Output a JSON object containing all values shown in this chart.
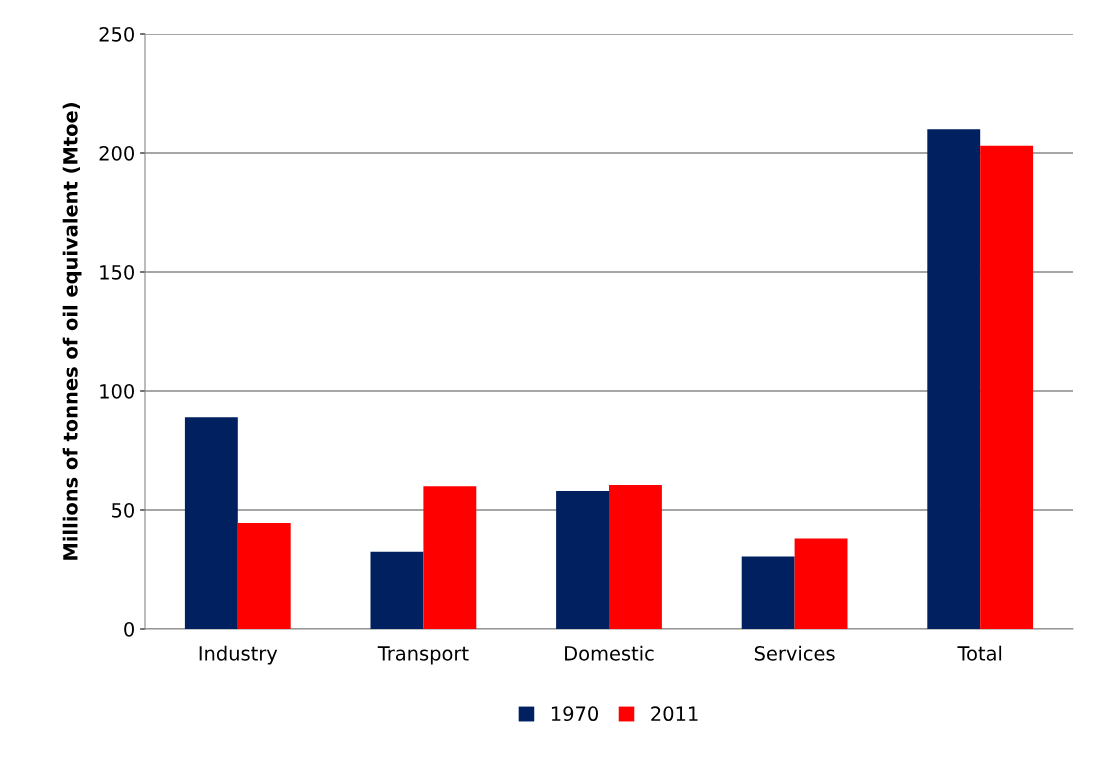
{
  "chart_data": {
    "type": "bar",
    "ylabel": "Millions of tonnes of oil equivalent (Mtoe)",
    "categories": [
      "Industry",
      "Transport",
      "Domestic",
      "Services",
      "Total"
    ],
    "series": [
      {
        "name": "1970",
        "color": "#002060",
        "values": [
          89,
          32.5,
          58,
          30.5,
          210
        ]
      },
      {
        "name": "2011",
        "color": "#ff0000",
        "values": [
          44.5,
          60,
          60.5,
          38,
          203
        ]
      }
    ],
    "ylim": [
      0,
      250
    ],
    "yticks": [
      0,
      50,
      100,
      150,
      200,
      250
    ],
    "grid": "y",
    "legend": "bottom"
  }
}
